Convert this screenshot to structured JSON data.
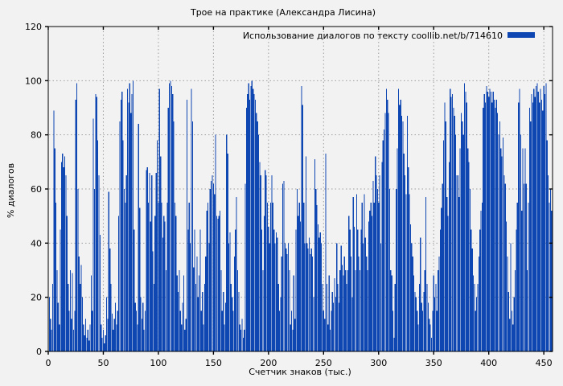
{
  "figure": {
    "title": "Трое на практике (Александра Лисина)",
    "legend_label": "Использование диалогов по тексту coollib.net/b/714610",
    "xlabel": "Счетчик знаков (тыс.)",
    "ylabel": "% диалогов"
  },
  "chart_data": {
    "type": "bar",
    "style": "impulses",
    "title": "Трое на практике (Александра Лисина)",
    "legend": "Использование диалогов по тексту coollib.net/b/714610",
    "xlabel": "Счетчик знаков (тыс.)",
    "ylabel": "% диалогов",
    "xlim": [
      0,
      458
    ],
    "ylim": [
      0,
      120
    ],
    "x_ticks": [
      0,
      50,
      100,
      150,
      200,
      250,
      300,
      350,
      400,
      450
    ],
    "y_ticks": [
      0,
      20,
      40,
      60,
      80,
      100,
      120
    ],
    "grid": true,
    "legend_position": "top-right-inside",
    "color": "#0e47b2",
    "grid_color": "#9e9e9e",
    "background": "#f2f2f2",
    "x_start": 0,
    "x_step": 1,
    "values": [
      15,
      20,
      12,
      8,
      25,
      89,
      75,
      55,
      30,
      18,
      10,
      45,
      70,
      73,
      68,
      72,
      65,
      50,
      25,
      15,
      30,
      12,
      29,
      8,
      15,
      93,
      99,
      60,
      35,
      25,
      32,
      20,
      10,
      6,
      12,
      5,
      8,
      4,
      10,
      28,
      15,
      86,
      60,
      95,
      94,
      78,
      65,
      43,
      10,
      5,
      8,
      3,
      6,
      20,
      12,
      59,
      38,
      25,
      14,
      8,
      12,
      18,
      10,
      15,
      50,
      85,
      93,
      96,
      78,
      60,
      55,
      65,
      97,
      92,
      99,
      88,
      95,
      100,
      45,
      18,
      15,
      10,
      84,
      53,
      20,
      12,
      18,
      8,
      15,
      67,
      68,
      55,
      66,
      48,
      65,
      37,
      25,
      50,
      66,
      78,
      55,
      97,
      72,
      55,
      42,
      50,
      48,
      30,
      55,
      90,
      99,
      100,
      98,
      95,
      85,
      55,
      50,
      28,
      22,
      30,
      15,
      10,
      18,
      28,
      8,
      12,
      93,
      45,
      55,
      40,
      97,
      85,
      31,
      45,
      25,
      35,
      20,
      28,
      45,
      15,
      22,
      10,
      25,
      35,
      52,
      55,
      40,
      60,
      63,
      65,
      62,
      58,
      80,
      50,
      49,
      50,
      52,
      30,
      15,
      22,
      10,
      18,
      80,
      73,
      40,
      44,
      25,
      20,
      15,
      35,
      45,
      57,
      30,
      22,
      10,
      8,
      12,
      5,
      8,
      62,
      90,
      95,
      99,
      93,
      98,
      100,
      97,
      95,
      93,
      88,
      85,
      80,
      70,
      65,
      45,
      30,
      50,
      67,
      65,
      55,
      46,
      40,
      55,
      65,
      55,
      45,
      40,
      44,
      42,
      25,
      15,
      20,
      35,
      62,
      63,
      40,
      38,
      36,
      40,
      30,
      10,
      15,
      8,
      28,
      12,
      45,
      60,
      50,
      55,
      48,
      98,
      91,
      55,
      40,
      72,
      40,
      38,
      42,
      36,
      38,
      35,
      20,
      71,
      60,
      54,
      47,
      42,
      44,
      40,
      25,
      15,
      12,
      73,
      25,
      10,
      28,
      8,
      15,
      22,
      18,
      27,
      20,
      40,
      25,
      18,
      30,
      39,
      32,
      28,
      35,
      30,
      25,
      30,
      50,
      45,
      35,
      20,
      57,
      46,
      30,
      58,
      45,
      35,
      30,
      45,
      55,
      40,
      58,
      42,
      35,
      30,
      48,
      52,
      55,
      50,
      63,
      55,
      72,
      65,
      60,
      55,
      65,
      40,
      70,
      78,
      82,
      88,
      97,
      93,
      88,
      60,
      30,
      28,
      15,
      5,
      25,
      60,
      75,
      97,
      91,
      93,
      87,
      85,
      73,
      65,
      58,
      87,
      68,
      58,
      47,
      40,
      35,
      28,
      22,
      20,
      15,
      10,
      25,
      42,
      18,
      15,
      22,
      30,
      57,
      25,
      18,
      12,
      10,
      5,
      15,
      28,
      20,
      25,
      15,
      30,
      35,
      45,
      53,
      62,
      78,
      92,
      85,
      57,
      50,
      70,
      97,
      94,
      95,
      90,
      87,
      80,
      65,
      65,
      57,
      75,
      88,
      85,
      80,
      99,
      96,
      92,
      75,
      70,
      60,
      45,
      38,
      28,
      25,
      15,
      20,
      25,
      35,
      45,
      52,
      55,
      90,
      95,
      92,
      98,
      96,
      94,
      97,
      96,
      92,
      96,
      93,
      90,
      93,
      88,
      80,
      85,
      75,
      72,
      79,
      65,
      62,
      48,
      35,
      22,
      12,
      40,
      15,
      10,
      20,
      30,
      45,
      55,
      92,
      97,
      80,
      52,
      75,
      62,
      75,
      62,
      30,
      55,
      90,
      85,
      95,
      92,
      97,
      94,
      98,
      99,
      96,
      92,
      97,
      93,
      89,
      98,
      95,
      99,
      78,
      65,
      55,
      60,
      52
    ]
  }
}
